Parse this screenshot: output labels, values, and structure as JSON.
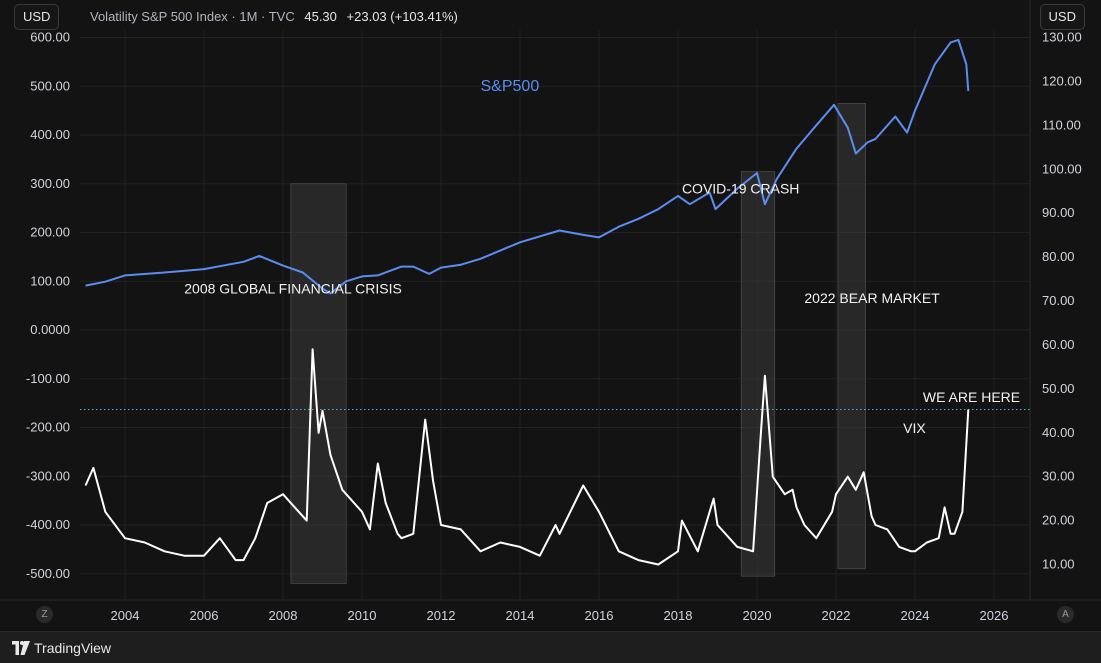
{
  "header": {
    "currency_left": "USD",
    "currency_right": "USD",
    "symbol_title": "Volatility S&P 500 Index · 1M · TVC",
    "last_price": "45.30",
    "change": "+23.03 (+103.41%)"
  },
  "footer": {
    "brand": "TradingView",
    "logo_icon": "tradingview-logo-icon"
  },
  "axis_badges": {
    "left": "Z",
    "right": "A"
  },
  "colors": {
    "background": "#131313",
    "sp500_line": "#5b8def",
    "vix_line": "#ffffff",
    "dotted_level": "#4fb3c3",
    "shaded_band": "#3a3a3a",
    "axis_text": "#d1d4dc"
  },
  "chart_data": {
    "type": "line",
    "x_ticks": [
      "2004",
      "2006",
      "2008",
      "2010",
      "2012",
      "2014",
      "2016",
      "2018",
      "2020",
      "2022",
      "2024",
      "2026"
    ],
    "left_axis": {
      "ticks": [
        "600.00",
        "500.00",
        "400.00",
        "300.00",
        "200.00",
        "100.00",
        "0.0000",
        "-100.00",
        "-200.00",
        "-300.00",
        "-400.00",
        "-500.00"
      ]
    },
    "right_axis": {
      "ticks": [
        "130.00",
        "120.00",
        "110.00",
        "100.00",
        "90.00",
        "80.00",
        "70.00",
        "60.00",
        "50.00",
        "40.00",
        "30.00",
        "20.00",
        "10.00"
      ]
    },
    "series": [
      {
        "name": "S&P500",
        "axis": "left",
        "points": [
          [
            2003.0,
            91
          ],
          [
            2003.5,
            99
          ],
          [
            2004.0,
            112
          ],
          [
            2005.0,
            118
          ],
          [
            2006.0,
            125
          ],
          [
            2007.0,
            140
          ],
          [
            2007.4,
            152
          ],
          [
            2008.0,
            132
          ],
          [
            2008.5,
            118
          ],
          [
            2009.0,
            85
          ],
          [
            2009.2,
            75
          ],
          [
            2009.6,
            100
          ],
          [
            2010.0,
            110
          ],
          [
            2010.4,
            112
          ],
          [
            2011.0,
            130
          ],
          [
            2011.3,
            130
          ],
          [
            2011.7,
            115
          ],
          [
            2012.0,
            128
          ],
          [
            2012.5,
            134
          ],
          [
            2013.0,
            146
          ],
          [
            2014.0,
            180
          ],
          [
            2015.0,
            204
          ],
          [
            2015.6,
            195
          ],
          [
            2016.0,
            190
          ],
          [
            2016.5,
            212
          ],
          [
            2017.0,
            228
          ],
          [
            2017.5,
            248
          ],
          [
            2018.0,
            275
          ],
          [
            2018.3,
            258
          ],
          [
            2018.8,
            282
          ],
          [
            2018.95,
            248
          ],
          [
            2019.5,
            290
          ],
          [
            2020.0,
            322
          ],
          [
            2020.2,
            258
          ],
          [
            2020.5,
            310
          ],
          [
            2021.0,
            372
          ],
          [
            2021.5,
            420
          ],
          [
            2021.95,
            462
          ],
          [
            2022.3,
            415
          ],
          [
            2022.5,
            362
          ],
          [
            2022.8,
            385
          ],
          [
            2023.0,
            392
          ],
          [
            2023.5,
            438
          ],
          [
            2023.8,
            405
          ],
          [
            2024.0,
            450
          ],
          [
            2024.5,
            545
          ],
          [
            2024.9,
            590
          ],
          [
            2025.1,
            595
          ],
          [
            2025.3,
            545
          ],
          [
            2025.35,
            490
          ]
        ]
      },
      {
        "name": "VIX",
        "axis": "right",
        "points": [
          [
            2003.0,
            28
          ],
          [
            2003.2,
            32
          ],
          [
            2003.5,
            22
          ],
          [
            2004.0,
            16
          ],
          [
            2004.5,
            15
          ],
          [
            2005.0,
            13
          ],
          [
            2005.5,
            12
          ],
          [
            2006.0,
            12
          ],
          [
            2006.4,
            16
          ],
          [
            2006.8,
            11
          ],
          [
            2007.0,
            11
          ],
          [
            2007.3,
            16
          ],
          [
            2007.6,
            24
          ],
          [
            2008.0,
            26
          ],
          [
            2008.3,
            23
          ],
          [
            2008.6,
            20
          ],
          [
            2008.75,
            59
          ],
          [
            2008.9,
            40
          ],
          [
            2009.0,
            45
          ],
          [
            2009.2,
            35
          ],
          [
            2009.5,
            27
          ],
          [
            2009.8,
            24
          ],
          [
            2010.0,
            22
          ],
          [
            2010.2,
            18
          ],
          [
            2010.4,
            33
          ],
          [
            2010.6,
            24
          ],
          [
            2010.9,
            17
          ],
          [
            2011.0,
            16
          ],
          [
            2011.3,
            17
          ],
          [
            2011.6,
            43
          ],
          [
            2011.8,
            29
          ],
          [
            2012.0,
            19
          ],
          [
            2012.5,
            18
          ],
          [
            2013.0,
            13
          ],
          [
            2013.5,
            15
          ],
          [
            2014.0,
            14
          ],
          [
            2014.5,
            12
          ],
          [
            2014.9,
            19
          ],
          [
            2015.0,
            17
          ],
          [
            2015.6,
            28
          ],
          [
            2016.0,
            22
          ],
          [
            2016.5,
            13
          ],
          [
            2017.0,
            11
          ],
          [
            2017.5,
            10
          ],
          [
            2018.0,
            13
          ],
          [
            2018.1,
            20
          ],
          [
            2018.5,
            13
          ],
          [
            2018.9,
            25
          ],
          [
            2019.0,
            19
          ],
          [
            2019.5,
            14
          ],
          [
            2019.9,
            13
          ],
          [
            2020.1,
            40
          ],
          [
            2020.2,
            53
          ],
          [
            2020.4,
            30
          ],
          [
            2020.7,
            26
          ],
          [
            2020.9,
            27
          ],
          [
            2021.0,
            23
          ],
          [
            2021.2,
            19
          ],
          [
            2021.5,
            16
          ],
          [
            2021.9,
            22
          ],
          [
            2022.0,
            26
          ],
          [
            2022.3,
            30
          ],
          [
            2022.5,
            27
          ],
          [
            2022.7,
            31
          ],
          [
            2022.9,
            21
          ],
          [
            2023.0,
            19
          ],
          [
            2023.3,
            18
          ],
          [
            2023.6,
            14
          ],
          [
            2023.9,
            13
          ],
          [
            2024.0,
            13
          ],
          [
            2024.3,
            15
          ],
          [
            2024.6,
            16
          ],
          [
            2024.75,
            23
          ],
          [
            2024.9,
            17
          ],
          [
            2025.0,
            17
          ],
          [
            2025.2,
            22
          ],
          [
            2025.35,
            45.3
          ]
        ]
      }
    ],
    "reference_line": {
      "axis": "right",
      "value": 45.3,
      "style": "dotted"
    },
    "shaded_regions": [
      {
        "x_start": 2008.2,
        "x_end": 2009.6,
        "y_top": 300,
        "y_bottom": -520,
        "axis": "left"
      },
      {
        "x_start": 2019.6,
        "x_end": 2020.45,
        "y_top": 325,
        "y_bottom": -505,
        "axis": "left"
      },
      {
        "x_start": 2022.05,
        "x_end": 2022.75,
        "y_top": 465,
        "y_bottom": -490,
        "axis": "left"
      }
    ],
    "annotations": [
      {
        "text": "S&P500",
        "x": 2013.0,
        "y": 490,
        "axis": "left",
        "color": "#5b8def"
      },
      {
        "text": "2008 GLOBAL FINANCIAL CRISIS",
        "x": 2005.5,
        "y": 75,
        "axis": "left"
      },
      {
        "text": "COVID-19 CRASH",
        "x": 2018.1,
        "y": 280,
        "axis": "left"
      },
      {
        "text": "2022 BEAR MARKET",
        "x": 2021.2,
        "y": 55,
        "axis": "left"
      },
      {
        "text": "WE ARE HERE",
        "x": 2024.2,
        "y": 47,
        "axis": "right"
      },
      {
        "text": "VIX",
        "x": 2023.7,
        "y": 40,
        "axis": "right"
      }
    ]
  }
}
